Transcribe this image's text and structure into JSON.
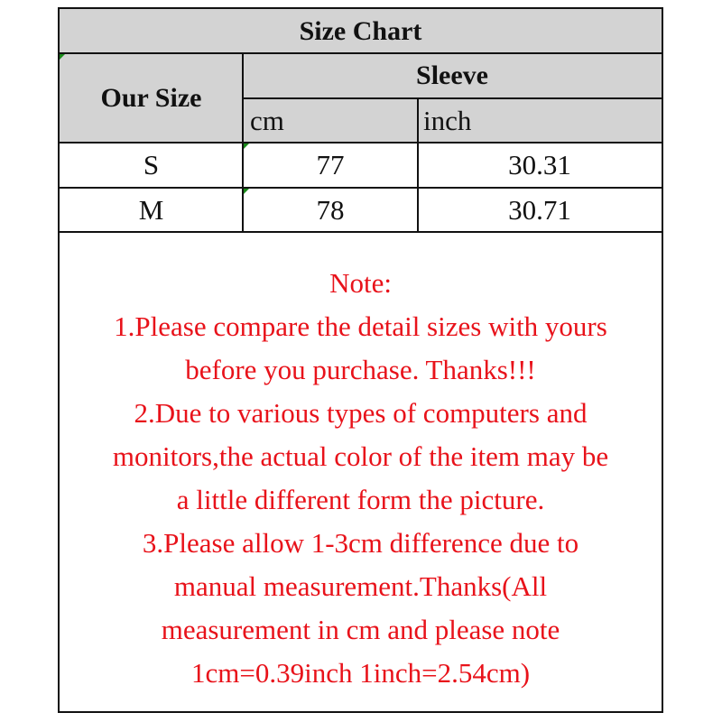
{
  "table": {
    "title": "Size Chart",
    "our_size_header": "Our Size",
    "group_header": "Sleeve",
    "units": [
      "cm",
      "inch"
    ],
    "rows": [
      {
        "size": "S",
        "cm": "77",
        "inch": "30.31"
      },
      {
        "size": "M",
        "cm": "78",
        "inch": "30.71"
      }
    ],
    "header_bg": "#d3d3d3"
  },
  "note": {
    "color": "#e8121a",
    "lines": [
      "Note:",
      "1.Please compare the detail sizes with yours",
      "before you purchase. Thanks!!!",
      "2.Due to various types of computers and",
      "monitors,the actual color of the item may be",
      "a little different form the picture.",
      "3.Please allow 1-3cm difference due to",
      "manual measurement.Thanks(All",
      "measurement in cm and please note",
      "1cm=0.39inch 1inch=2.54cm)"
    ]
  }
}
